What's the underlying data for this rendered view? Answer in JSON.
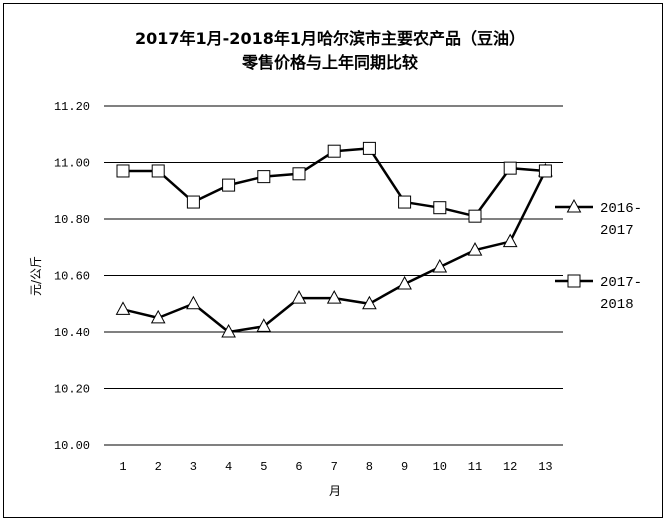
{
  "chart_data": {
    "type": "line",
    "title": "2017年1月-2018年1月哈尔滨市主要农产品（豆油）",
    "subtitle": "零售价格与上年同期比较",
    "xlabel": "月",
    "ylabel": "元/公斤",
    "ylim": [
      10.0,
      11.2
    ],
    "y_ticks": [
      "10.00",
      "10.20",
      "10.40",
      "10.60",
      "10.80",
      "11.00",
      "11.20"
    ],
    "categories": [
      "1",
      "2",
      "3",
      "4",
      "5",
      "6",
      "7",
      "8",
      "9",
      "10",
      "11",
      "12",
      "13"
    ],
    "grid": true,
    "legend_position": "right",
    "series": [
      {
        "name_lines": [
          "2016-",
          "2017"
        ],
        "marker": "triangle",
        "values": [
          10.48,
          10.45,
          10.5,
          10.4,
          10.42,
          10.52,
          10.52,
          10.5,
          10.57,
          10.63,
          10.69,
          10.72,
          10.97
        ]
      },
      {
        "name_lines": [
          "2017-",
          "2018"
        ],
        "marker": "square",
        "values": [
          10.97,
          10.97,
          10.86,
          10.92,
          10.95,
          10.96,
          11.04,
          11.05,
          10.86,
          10.84,
          10.81,
          10.98,
          10.97
        ]
      }
    ]
  }
}
